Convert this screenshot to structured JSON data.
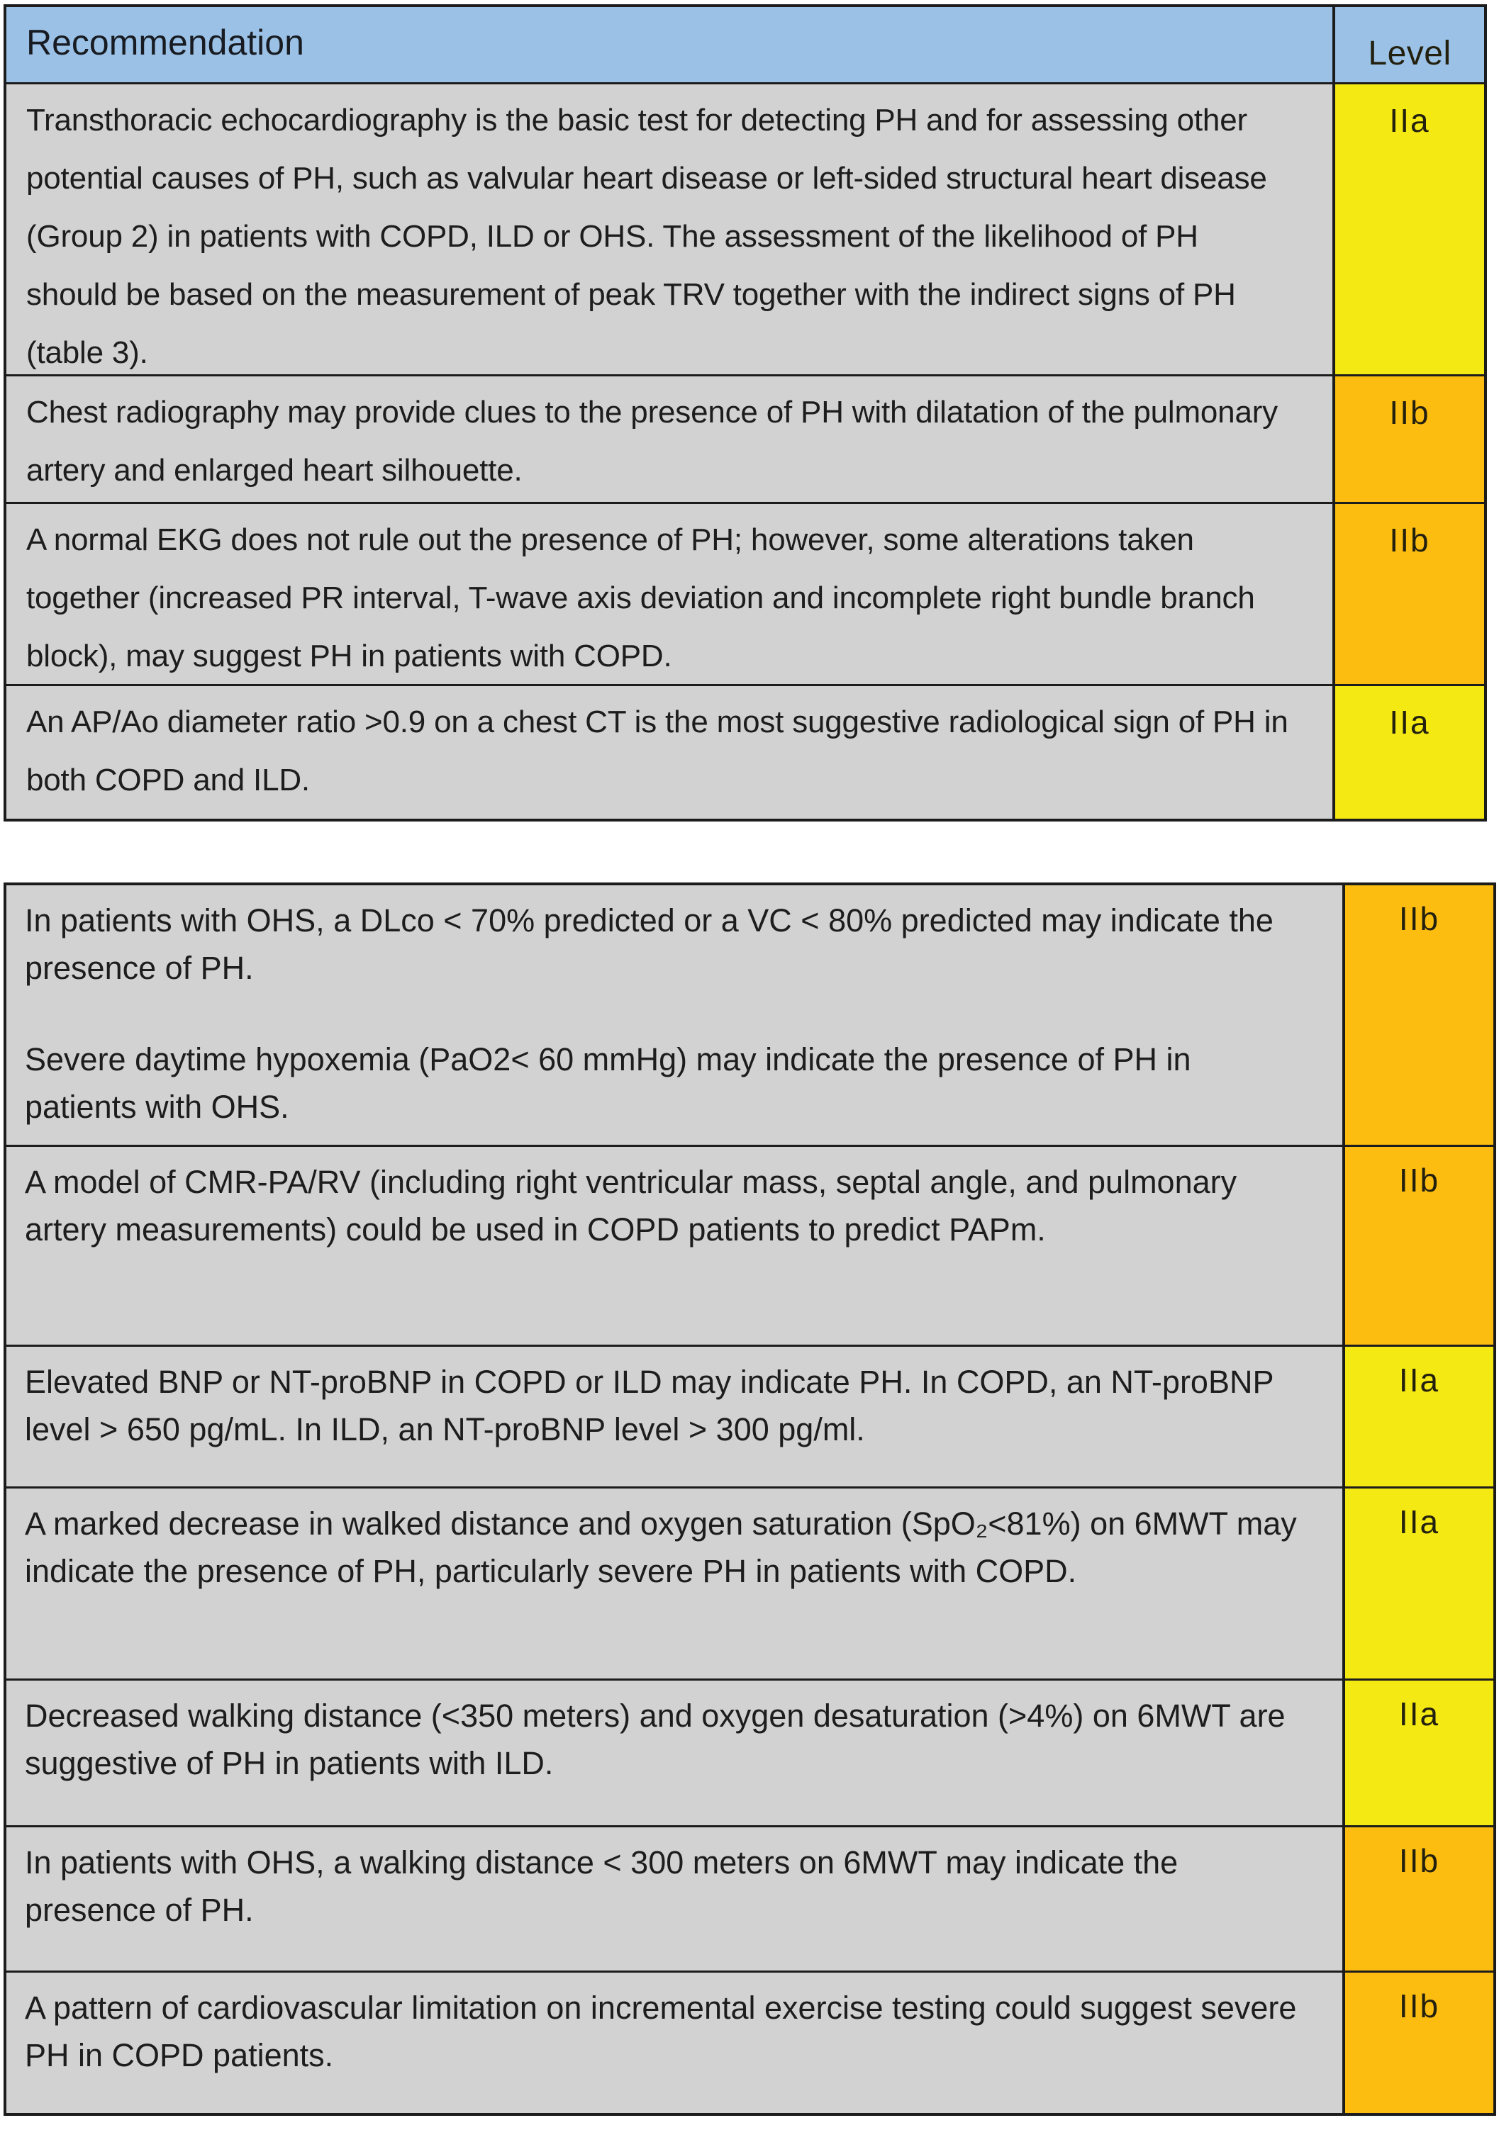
{
  "colors": {
    "header_blue": "#9bc2e6",
    "row_gray": "#d3d2d2",
    "level_IIa_yellow": "#f4e912",
    "level_IIb_orange": "#fcbd10",
    "border_black": "#1c1c1c"
  },
  "header": {
    "recommendation": "Recommendation",
    "level": "Level"
  },
  "table1": {
    "rows": [
      {
        "text": "Transthoracic echocardiography is the basic test for detecting PH and for assessing other potential causes of PH, such as valvular heart disease or left-sided structural heart disease (Group 2) in patients with COPD, ILD or OHS. The assessment of the likelihood of PH should be based on the measurement of peak TRV together with the indirect signs of PH (table 3).",
        "level": "IIa"
      },
      {
        "text": "Chest radiography may provide clues to the presence of PH with dilatation of the pulmonary artery and enlarged heart silhouette.",
        "level": "IIb"
      },
      {
        "text": "A normal EKG does not rule out the presence of PH; however, some alterations taken together (increased PR interval, T-wave axis deviation and incomplete right bundle branch block), may suggest PH in patients with COPD.",
        "level": "IIb"
      },
      {
        "text": "An AP/Ao diameter ratio >0.9 on a chest CT is the most suggestive radiological sign of PH in both COPD and ILD.",
        "level": "IIa"
      }
    ]
  },
  "table2": {
    "rows": [
      {
        "paragraphs": [
          "In patients with OHS, a DLco < 70% predicted or a VC < 80% predicted may indicate the presence of PH.",
          "Severe daytime hypoxemia (PaO2< 60 mmHg) may indicate the presence of PH in patients with OHS."
        ],
        "level": "IIb"
      },
      {
        "paragraphs": [
          "A model of CMR-PA/RV (including right ventricular mass, septal angle, and pulmonary artery measurements) could be used in COPD patients to predict PAPm."
        ],
        "level": "IIb"
      },
      {
        "paragraphs": [
          "Elevated BNP or NT-proBNP in COPD or ILD may indicate PH. In COPD, an NT-proBNP level > 650 pg/mL. In ILD, an NT-proBNP level > 300 pg/ml."
        ],
        "level": "IIa"
      },
      {
        "paragraphs": [
          "A marked decrease in walked distance and oxygen saturation (SpO₂<81%) on 6MWT may indicate the presence of PH, particularly severe PH in patients with COPD."
        ],
        "level": "IIa"
      },
      {
        "paragraphs": [
          "Decreased walking distance (<350 meters) and oxygen desaturation (>4%) on 6MWT are suggestive of PH in patients with ILD."
        ],
        "level": "IIa"
      },
      {
        "paragraphs": [
          "In patients with OHS, a walking distance < 300 meters on 6MWT may indicate the presence of PH."
        ],
        "level": "IIb"
      },
      {
        "paragraphs": [
          "A pattern of cardiovascular limitation on incremental exercise testing could suggest severe PH in COPD patients."
        ],
        "level": "IIb"
      }
    ]
  }
}
